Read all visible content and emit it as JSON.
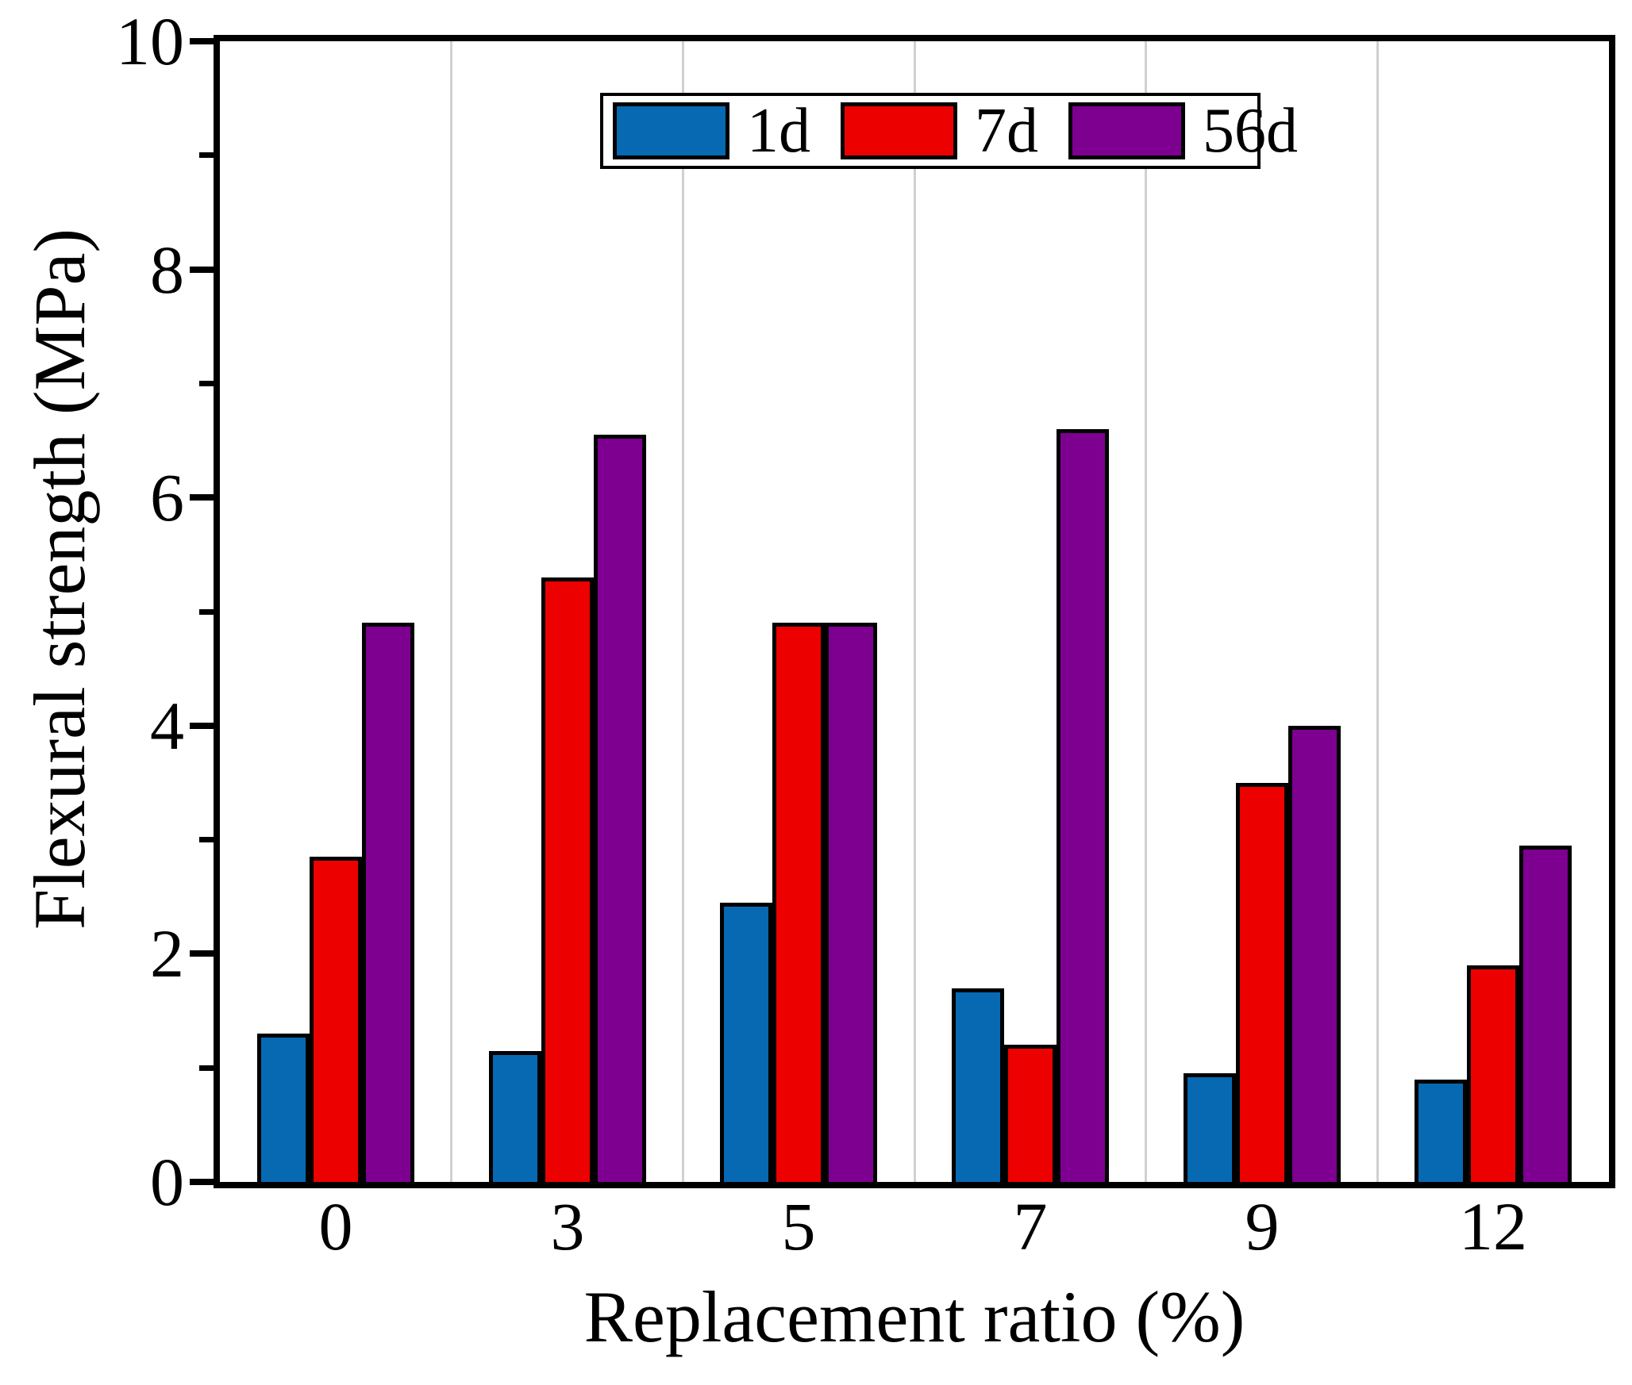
{
  "figure": {
    "background": "#ffffff",
    "axis_color": "#000000",
    "gridline_color": "#d0d0d0"
  },
  "chart_data": {
    "type": "bar",
    "title": "",
    "xlabel": "Replacement ratio (%)",
    "ylabel": "Flexural strength (MPa)",
    "categories": [
      "0",
      "3",
      "5",
      "7",
      "9",
      "12"
    ],
    "series": [
      {
        "name": "1d",
        "color": "#0669B2",
        "values": [
          1.3,
          1.15,
          2.45,
          1.7,
          0.95,
          0.9
        ]
      },
      {
        "name": "7d",
        "color": "#ED0000",
        "values": [
          2.85,
          5.3,
          4.9,
          1.2,
          3.5,
          1.9
        ]
      },
      {
        "name": "56d",
        "color": "#7E0091",
        "values": [
          4.9,
          6.55,
          4.9,
          6.6,
          4.0,
          2.95
        ]
      }
    ],
    "ylim": [
      0,
      10
    ],
    "y_major_ticks": [
      0,
      2,
      4,
      6,
      8,
      10
    ],
    "y_minor_ticks": [
      1,
      3,
      5,
      7,
      9
    ],
    "grid": "vertical-lines-at-category-boundaries",
    "legend_position": "top-center"
  }
}
